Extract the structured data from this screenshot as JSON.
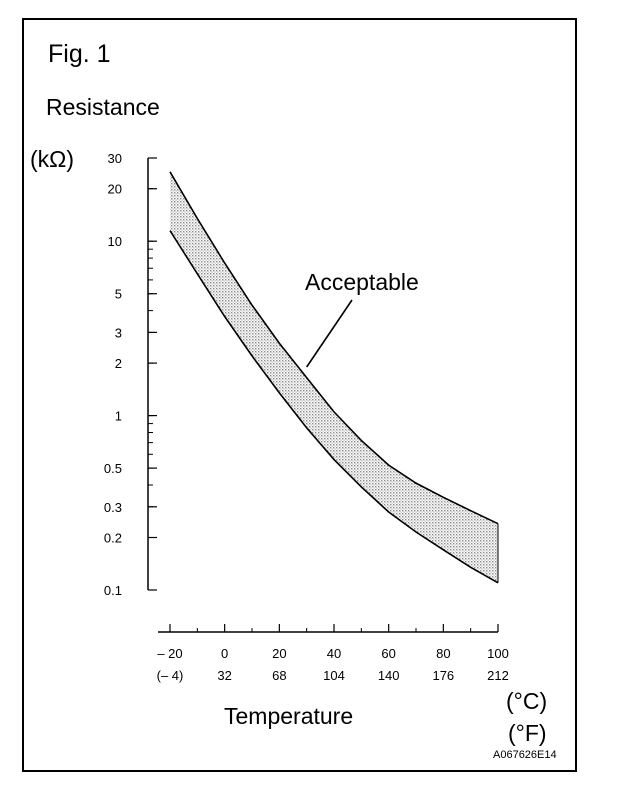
{
  "figure": {
    "label": "Fig. 1",
    "y_title": "Resistance",
    "y_unit": "(kΩ)",
    "x_title": "Temperature",
    "x_unit_c": "(°C)",
    "x_unit_f": "(°F)",
    "code": "A067626E14"
  },
  "chart_data": {
    "type": "area",
    "y_scale": "log",
    "ylim": [
      0.1,
      30
    ],
    "xlim": [
      -20,
      100
    ],
    "yticks": [
      {
        "value": 30,
        "label": "30"
      },
      {
        "value": 20,
        "label": "20"
      },
      {
        "value": 10,
        "label": "10"
      },
      {
        "value": 5,
        "label": "5"
      },
      {
        "value": 3,
        "label": "3"
      },
      {
        "value": 2,
        "label": "2"
      },
      {
        "value": 1,
        "label": "1"
      },
      {
        "value": 0.5,
        "label": "0.5"
      },
      {
        "value": 0.3,
        "label": "0.3"
      },
      {
        "value": 0.2,
        "label": "0.2"
      },
      {
        "value": 0.1,
        "label": "0.1"
      }
    ],
    "xticks_c": [
      {
        "value": -20,
        "label": "– 20"
      },
      {
        "value": 0,
        "label": "0"
      },
      {
        "value": 20,
        "label": "20"
      },
      {
        "value": 40,
        "label": "40"
      },
      {
        "value": 60,
        "label": "60"
      },
      {
        "value": 80,
        "label": "80"
      },
      {
        "value": 100,
        "label": "100"
      }
    ],
    "xticks_f": [
      {
        "value": -20,
        "label": "(– 4)"
      },
      {
        "value": 0,
        "label": "32"
      },
      {
        "value": 20,
        "label": "68"
      },
      {
        "value": 40,
        "label": "104"
      },
      {
        "value": 60,
        "label": "140"
      },
      {
        "value": 80,
        "label": "176"
      },
      {
        "value": 100,
        "label": "212"
      }
    ],
    "band": {
      "label": "Acceptable",
      "x": [
        -20,
        -10,
        0,
        10,
        20,
        30,
        40,
        50,
        60,
        70,
        80,
        90,
        100
      ],
      "upper": [
        25.0,
        13.5,
        7.5,
        4.3,
        2.6,
        1.65,
        1.05,
        0.72,
        0.52,
        0.41,
        0.34,
        0.285,
        0.24
      ],
      "lower": [
        11.5,
        6.5,
        3.7,
        2.2,
        1.35,
        0.85,
        0.56,
        0.39,
        0.28,
        0.215,
        0.17,
        0.135,
        0.11
      ]
    },
    "label_target": {
      "x": 30,
      "y": 1.9
    },
    "colors": {
      "line": "#000000",
      "band_fill": "#c8c8c8"
    }
  }
}
